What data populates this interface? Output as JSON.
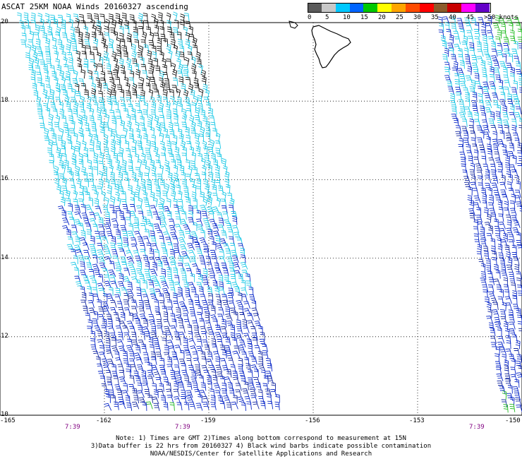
{
  "title": "ASCAT 25KM NOAA Winds 20160327 ascending",
  "color_scale": {
    "unit": "knots",
    "labels": [
      "0",
      "5",
      "10",
      "15",
      "20",
      "25",
      "30",
      "35",
      "40",
      "45",
      ">50 knots"
    ],
    "colors": [
      "#5a5a5a",
      "#c8c8c8",
      "#00c8ff",
      "#0064ff",
      "#00c800",
      "#ffff00",
      "#ffa500",
      "#ff4b00",
      "#ff0000",
      "#8b5a2b",
      "#c80000",
      "#ff00ff",
      "#6400c8"
    ]
  },
  "lat_labels": [
    {
      "value": 20,
      "text": "20"
    },
    {
      "value": 18,
      "text": "18"
    },
    {
      "value": 16,
      "text": "16"
    },
    {
      "value": 14,
      "text": "14"
    },
    {
      "value": 12,
      "text": "12"
    },
    {
      "value": 10,
      "text": "10"
    }
  ],
  "lon_labels": [
    {
      "value": -165,
      "text": "-165"
    },
    {
      "value": -162,
      "text": "-162"
    },
    {
      "value": -159,
      "text": "-159"
    },
    {
      "value": -156,
      "text": "-156"
    },
    {
      "value": -153,
      "text": "-153"
    },
    {
      "value": -150,
      "text": "-150"
    }
  ],
  "times": [
    "7:39",
    "7:39",
    "7:39"
  ],
  "notes": [
    "Note: 1) Times are GMT 2)Times along bottom correspond to measurement at 15N",
    "3)Data buffer is 22 hrs from 20160327 4) Black wind barbs indicate possible contamination",
    "NOAA/NESDIS/Center for Satellite Applications and Research"
  ]
}
